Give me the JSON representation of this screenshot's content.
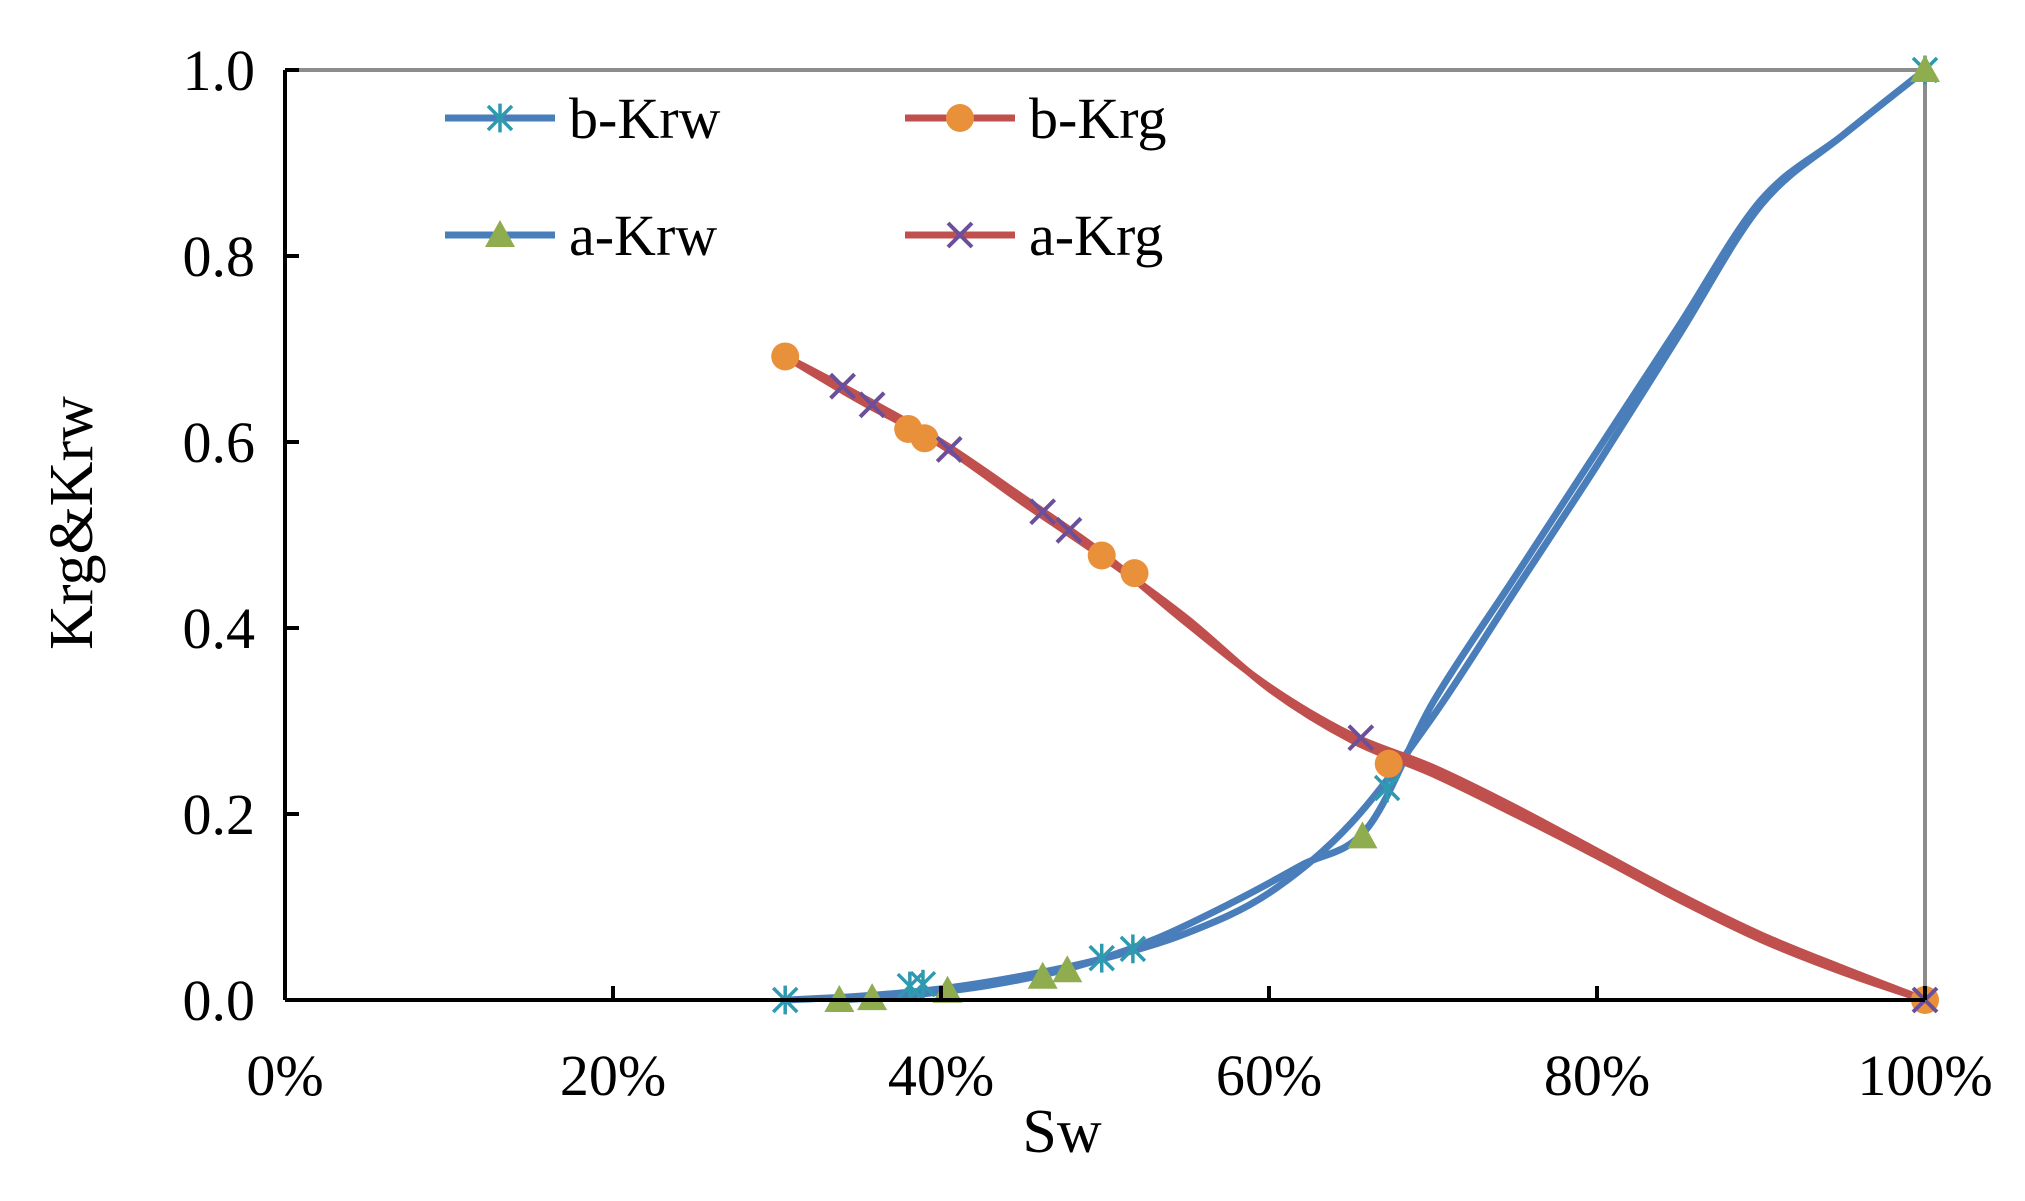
{
  "chart_data": {
    "type": "line",
    "title": "",
    "xlabel": "Sw",
    "ylabel": "Krg&Krw",
    "xlim": [
      0,
      1
    ],
    "ylim": [
      0,
      1
    ],
    "x_ticks": [
      0,
      0.2,
      0.4,
      0.6,
      0.8,
      1.0
    ],
    "x_tick_labels": [
      "0%",
      "20%",
      "40%",
      "60%",
      "80%",
      "100%"
    ],
    "y_ticks": [
      0,
      0.2,
      0.4,
      0.6,
      0.8,
      1.0
    ],
    "y_tick_labels": [
      "0.0",
      "0.2",
      "0.4",
      "0.6",
      "0.8",
      "1.0"
    ],
    "legend_position": "top-left",
    "series": [
      {
        "name": "b-Krw",
        "color": "#4a7ebb",
        "marker": "asterisk",
        "marker_color": "#2e9ab0",
        "curve": [
          [
            0.305,
            0
          ],
          [
            0.35,
            0.004
          ],
          [
            0.4,
            0.012
          ],
          [
            0.45,
            0.026
          ],
          [
            0.5,
            0.045
          ],
          [
            0.55,
            0.072
          ],
          [
            0.6,
            0.115
          ],
          [
            0.65,
            0.19
          ],
          [
            0.7,
            0.305
          ],
          [
            0.75,
            0.44
          ],
          [
            0.8,
            0.575
          ],
          [
            0.85,
            0.715
          ],
          [
            0.9,
            0.855
          ],
          [
            0.95,
            0.93
          ],
          [
            1.0,
            1.0
          ]
        ],
        "markers": [
          [
            0.305,
            0.0
          ],
          [
            0.381,
            0.015
          ],
          [
            0.389,
            0.017
          ],
          [
            0.498,
            0.045
          ],
          [
            0.517,
            0.055
          ],
          [
            0.672,
            0.228
          ],
          [
            1.0,
            1.0
          ]
        ]
      },
      {
        "name": "a-Krw",
        "color": "#4a7ebb",
        "marker": "triangle",
        "marker_color": "#8fad4f",
        "curve": [
          [
            0.338,
            0
          ],
          [
            0.38,
            0.005
          ],
          [
            0.43,
            0.016
          ],
          [
            0.48,
            0.035
          ],
          [
            0.53,
            0.065
          ],
          [
            0.58,
            0.107
          ],
          [
            0.62,
            0.145
          ],
          [
            0.66,
            0.185
          ],
          [
            0.7,
            0.32
          ],
          [
            0.75,
            0.455
          ],
          [
            0.8,
            0.59
          ],
          [
            0.85,
            0.725
          ],
          [
            0.9,
            0.86
          ],
          [
            0.95,
            0.93
          ],
          [
            1.0,
            1.0
          ]
        ],
        "markers": [
          [
            0.338,
            0.0
          ],
          [
            0.358,
            0.002
          ],
          [
            0.404,
            0.01
          ],
          [
            0.462,
            0.025
          ],
          [
            0.477,
            0.032
          ],
          [
            0.657,
            0.176
          ],
          [
            1.0,
            1.0
          ]
        ]
      },
      {
        "name": "b-Krg",
        "color": "#c0504d",
        "marker": "circle",
        "marker_color": "#e8913a",
        "curve": [
          [
            0.305,
            0.692
          ],
          [
            0.35,
            0.645
          ],
          [
            0.4,
            0.597
          ],
          [
            0.45,
            0.535
          ],
          [
            0.5,
            0.475
          ],
          [
            0.55,
            0.41
          ],
          [
            0.6,
            0.335
          ],
          [
            0.65,
            0.28
          ],
          [
            0.7,
            0.243
          ],
          [
            0.75,
            0.2
          ],
          [
            0.8,
            0.155
          ],
          [
            0.85,
            0.108
          ],
          [
            0.9,
            0.065
          ],
          [
            0.95,
            0.03
          ],
          [
            1.0,
            0.0
          ]
        ],
        "markers": [
          [
            0.305,
            0.692
          ],
          [
            0.38,
            0.614
          ],
          [
            0.39,
            0.604
          ],
          [
            0.498,
            0.478
          ],
          [
            0.518,
            0.459
          ],
          [
            0.673,
            0.254
          ],
          [
            1.0,
            0.0
          ]
        ]
      },
      {
        "name": "a-Krg",
        "color": "#c0504d",
        "marker": "x",
        "marker_color": "#6b4f9a",
        "curve": [
          [
            0.305,
            0.692
          ],
          [
            0.35,
            0.65
          ],
          [
            0.4,
            0.6
          ],
          [
            0.45,
            0.54
          ],
          [
            0.5,
            0.478
          ],
          [
            0.55,
            0.405
          ],
          [
            0.6,
            0.337
          ],
          [
            0.65,
            0.285
          ],
          [
            0.7,
            0.25
          ],
          [
            0.75,
            0.207
          ],
          [
            0.8,
            0.16
          ],
          [
            0.85,
            0.113
          ],
          [
            0.9,
            0.07
          ],
          [
            0.95,
            0.034
          ],
          [
            1.0,
            0.0
          ]
        ],
        "markers": [
          [
            0.34,
            0.66
          ],
          [
            0.358,
            0.64
          ],
          [
            0.405,
            0.592
          ],
          [
            0.462,
            0.525
          ],
          [
            0.478,
            0.505
          ],
          [
            0.656,
            0.282
          ],
          [
            1.0,
            0.0
          ]
        ]
      }
    ]
  }
}
